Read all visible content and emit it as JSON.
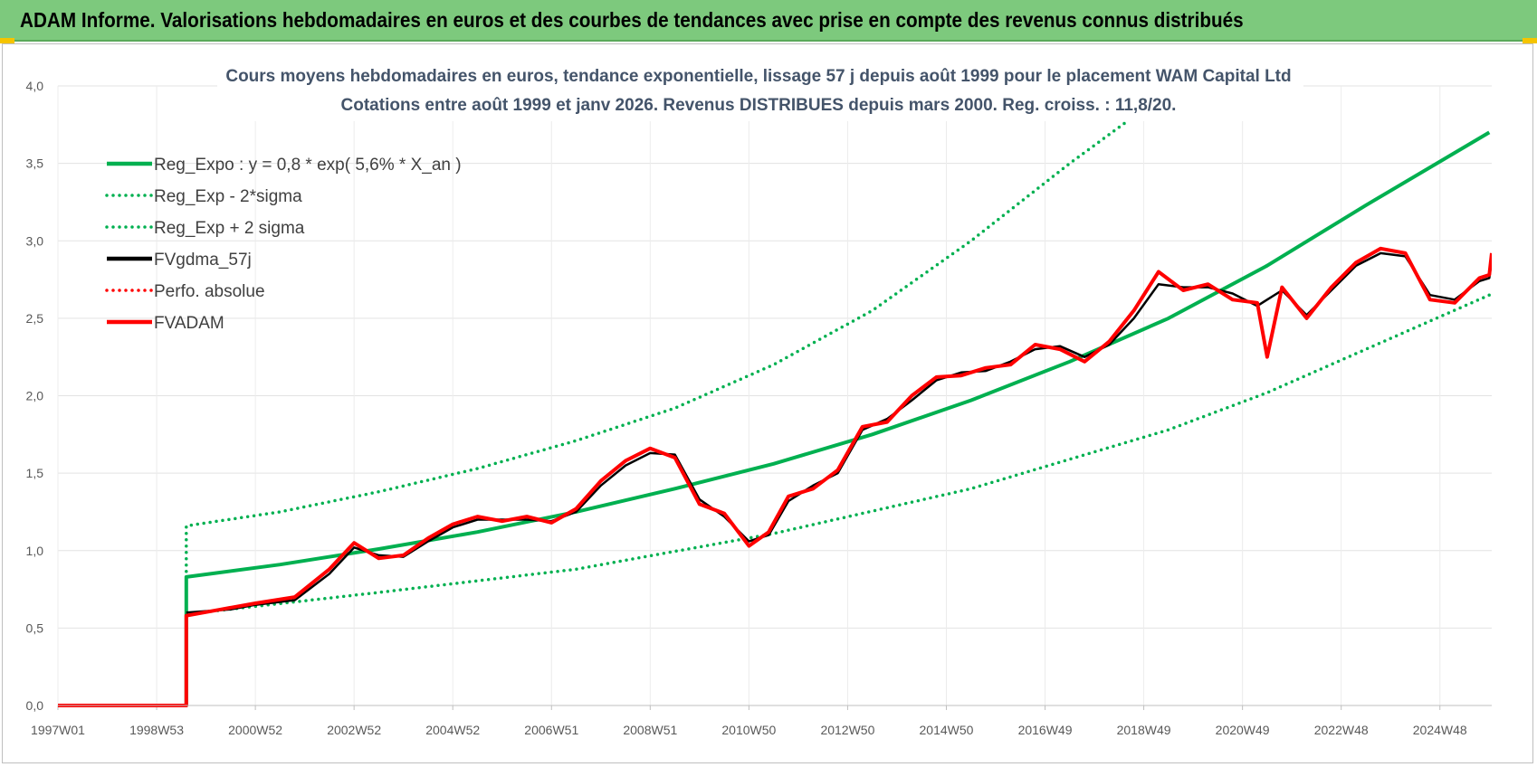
{
  "header": {
    "title": "ADAM Informe. Valorisations hebdomadaires en euros et des courbes de tendances avec prise en compte des revenus connus distribués",
    "bg_color": "#7dc97d"
  },
  "chart_data": {
    "type": "line",
    "title": "Cours moyens hebdomadaires en euros, tendance exponentielle, lissage 57 j depuis août 1999 pour le placement WAM Capital Ltd",
    "subtitle": "Cotations entre août 1999 et janv 2026.  Revenus DISTRIBUES depuis mars 2000. Reg. croiss. : 11,8/20.",
    "xlabel": "",
    "ylabel": "",
    "xlim": [
      1997.0,
      2026.05
    ],
    "ylim": [
      0,
      4
    ],
    "y_ticks": [
      "0,0",
      "0,5",
      "1,0",
      "1,5",
      "2,0",
      "2,5",
      "3,0",
      "3,5",
      "4,0"
    ],
    "x_ticks": [
      {
        "label": "1997W01",
        "x": 1997.0
      },
      {
        "label": "1998W53",
        "x": 1999.0
      },
      {
        "label": "2000W52",
        "x": 2001.0
      },
      {
        "label": "2002W52",
        "x": 2003.0
      },
      {
        "label": "2004W52",
        "x": 2005.0
      },
      {
        "label": "2006W51",
        "x": 2007.0
      },
      {
        "label": "2008W51",
        "x": 2009.0
      },
      {
        "label": "2010W50",
        "x": 2011.0
      },
      {
        "label": "2012W50",
        "x": 2013.0
      },
      {
        "label": "2014W50",
        "x": 2015.0
      },
      {
        "label": "2016W49",
        "x": 2017.0
      },
      {
        "label": "2018W49",
        "x": 2019.0
      },
      {
        "label": "2020W49",
        "x": 2021.0
      },
      {
        "label": "2022W48",
        "x": 2023.0
      },
      {
        "label": "2024W48",
        "x": 2025.0
      }
    ],
    "grid": true,
    "legend_position": "top-left",
    "series": [
      {
        "name": "Reg_Expo : y = 0,8 * exp( 5,6% *  X_an )",
        "color": "#00b050",
        "style": "solid",
        "points": [
          [
            1997.0,
            0
          ],
          [
            1999.6,
            0
          ],
          [
            1999.6,
            0.83
          ],
          [
            2001.5,
            0.91
          ],
          [
            2003.5,
            1.01
          ],
          [
            2005.5,
            1.12
          ],
          [
            2007.5,
            1.25
          ],
          [
            2009.5,
            1.4
          ],
          [
            2011.5,
            1.56
          ],
          [
            2013.5,
            1.75
          ],
          [
            2015.5,
            1.97
          ],
          [
            2017.5,
            2.22
          ],
          [
            2019.5,
            2.5
          ],
          [
            2021.5,
            2.84
          ],
          [
            2023.5,
            3.23
          ],
          [
            2026.0,
            3.7
          ]
        ]
      },
      {
        "name": "Reg_Exp - 2*sigma",
        "color": "#00b050",
        "style": "dotted",
        "points": [
          [
            1999.6,
            0.59
          ],
          [
            2003.5,
            0.73
          ],
          [
            2007.5,
            0.88
          ],
          [
            2011.5,
            1.11
          ],
          [
            2015.5,
            1.4
          ],
          [
            2019.5,
            1.78
          ],
          [
            2021.5,
            2.02
          ],
          [
            2023.5,
            2.3
          ],
          [
            2026.0,
            2.65
          ]
        ]
      },
      {
        "name": "Reg_Exp + 2 sigma",
        "color": "#00b050",
        "style": "dotted",
        "points": [
          [
            1999.6,
            0.62
          ],
          [
            1999.6,
            1.16
          ],
          [
            2001.5,
            1.25
          ],
          [
            2003.5,
            1.38
          ],
          [
            2005.5,
            1.53
          ],
          [
            2007.5,
            1.71
          ],
          [
            2009.5,
            1.92
          ],
          [
            2011.5,
            2.2
          ],
          [
            2013.5,
            2.55
          ],
          [
            2015.5,
            3.0
          ],
          [
            2016.5,
            3.25
          ],
          [
            2017.5,
            3.5
          ],
          [
            2018.7,
            3.78
          ]
        ]
      },
      {
        "name": "FVgdma_57j",
        "color": "#000000",
        "style": "solid",
        "points": [
          [
            1999.6,
            0.6
          ],
          [
            2000.5,
            0.62
          ],
          [
            2001.0,
            0.65
          ],
          [
            2001.8,
            0.68
          ],
          [
            2002.5,
            0.85
          ],
          [
            2003.0,
            1.02
          ],
          [
            2003.5,
            0.97
          ],
          [
            2004.0,
            0.96
          ],
          [
            2004.5,
            1.06
          ],
          [
            2005.0,
            1.15
          ],
          [
            2005.5,
            1.2
          ],
          [
            2006.0,
            1.2
          ],
          [
            2006.5,
            1.2
          ],
          [
            2007.0,
            1.19
          ],
          [
            2007.5,
            1.25
          ],
          [
            2008.0,
            1.42
          ],
          [
            2008.5,
            1.55
          ],
          [
            2009.0,
            1.63
          ],
          [
            2009.5,
            1.62
          ],
          [
            2010.0,
            1.33
          ],
          [
            2010.5,
            1.22
          ],
          [
            2011.0,
            1.06
          ],
          [
            2011.4,
            1.1
          ],
          [
            2011.8,
            1.32
          ],
          [
            2012.3,
            1.42
          ],
          [
            2012.8,
            1.5
          ],
          [
            2013.3,
            1.78
          ],
          [
            2013.8,
            1.85
          ],
          [
            2014.3,
            1.97
          ],
          [
            2014.8,
            2.1
          ],
          [
            2015.3,
            2.15
          ],
          [
            2015.8,
            2.16
          ],
          [
            2016.3,
            2.22
          ],
          [
            2016.8,
            2.3
          ],
          [
            2017.3,
            2.32
          ],
          [
            2017.8,
            2.25
          ],
          [
            2018.3,
            2.33
          ],
          [
            2018.8,
            2.5
          ],
          [
            2019.3,
            2.72
          ],
          [
            2019.8,
            2.7
          ],
          [
            2020.3,
            2.7
          ],
          [
            2020.8,
            2.66
          ],
          [
            2021.3,
            2.58
          ],
          [
            2021.8,
            2.68
          ],
          [
            2022.3,
            2.52
          ],
          [
            2022.8,
            2.68
          ],
          [
            2023.3,
            2.84
          ],
          [
            2023.8,
            2.92
          ],
          [
            2024.3,
            2.9
          ],
          [
            2024.8,
            2.65
          ],
          [
            2025.3,
            2.62
          ],
          [
            2025.8,
            2.74
          ],
          [
            2026.0,
            2.76
          ],
          [
            2026.05,
            2.88
          ]
        ]
      },
      {
        "name": "Perfo. absolue",
        "color": "#ff0000",
        "style": "dotted",
        "points": []
      },
      {
        "name": "FVADAM",
        "color": "#ff0000",
        "style": "solid",
        "points": [
          [
            1997.0,
            0
          ],
          [
            1999.6,
            0
          ],
          [
            1999.6,
            0.58
          ],
          [
            2000.3,
            0.62
          ],
          [
            2001.0,
            0.66
          ],
          [
            2001.8,
            0.7
          ],
          [
            2002.5,
            0.88
          ],
          [
            2003.0,
            1.05
          ],
          [
            2003.5,
            0.95
          ],
          [
            2004.0,
            0.97
          ],
          [
            2004.5,
            1.08
          ],
          [
            2005.0,
            1.17
          ],
          [
            2005.5,
            1.22
          ],
          [
            2006.0,
            1.19
          ],
          [
            2006.5,
            1.22
          ],
          [
            2007.0,
            1.18
          ],
          [
            2007.5,
            1.27
          ],
          [
            2008.0,
            1.45
          ],
          [
            2008.5,
            1.58
          ],
          [
            2009.0,
            1.66
          ],
          [
            2009.5,
            1.6
          ],
          [
            2010.0,
            1.3
          ],
          [
            2010.5,
            1.24
          ],
          [
            2011.0,
            1.03
          ],
          [
            2011.4,
            1.12
          ],
          [
            2011.8,
            1.35
          ],
          [
            2012.3,
            1.4
          ],
          [
            2012.8,
            1.52
          ],
          [
            2013.3,
            1.8
          ],
          [
            2013.8,
            1.83
          ],
          [
            2014.3,
            2.0
          ],
          [
            2014.8,
            2.12
          ],
          [
            2015.3,
            2.13
          ],
          [
            2015.8,
            2.18
          ],
          [
            2016.3,
            2.2
          ],
          [
            2016.8,
            2.33
          ],
          [
            2017.3,
            2.3
          ],
          [
            2017.8,
            2.22
          ],
          [
            2018.3,
            2.35
          ],
          [
            2018.8,
            2.55
          ],
          [
            2019.3,
            2.8
          ],
          [
            2019.8,
            2.68
          ],
          [
            2020.3,
            2.72
          ],
          [
            2020.8,
            2.62
          ],
          [
            2021.3,
            2.6
          ],
          [
            2021.5,
            2.25
          ],
          [
            2021.8,
            2.7
          ],
          [
            2022.3,
            2.5
          ],
          [
            2022.8,
            2.7
          ],
          [
            2023.3,
            2.86
          ],
          [
            2023.8,
            2.95
          ],
          [
            2024.3,
            2.92
          ],
          [
            2024.8,
            2.62
          ],
          [
            2025.3,
            2.6
          ],
          [
            2025.8,
            2.76
          ],
          [
            2026.0,
            2.78
          ],
          [
            2026.05,
            2.92
          ]
        ]
      }
    ]
  }
}
